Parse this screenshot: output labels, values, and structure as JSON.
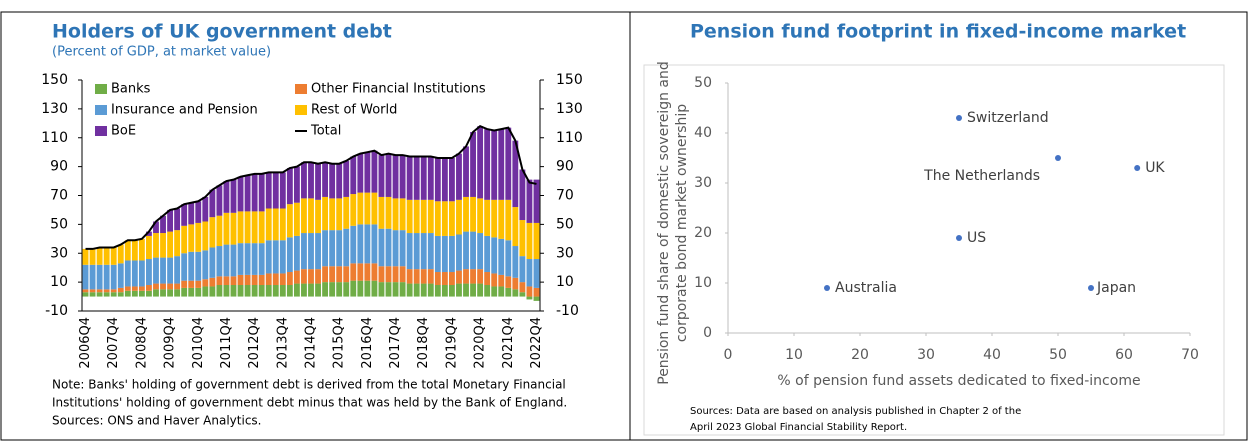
{
  "chart_data": [
    {
      "type": "bar",
      "stacked": true,
      "title": "Holders of UK government debt",
      "subtitle": "(Percent of GDP, at market value)",
      "categories": [
        "2006Q4",
        null,
        null,
        null,
        "2007Q4",
        null,
        null,
        null,
        "2008Q4",
        null,
        null,
        null,
        "2009Q4",
        null,
        null,
        null,
        "2010Q4",
        null,
        null,
        null,
        "2011Q4",
        null,
        null,
        null,
        "2012Q4",
        null,
        null,
        null,
        "2013Q4",
        null,
        null,
        null,
        "2014Q4",
        null,
        null,
        null,
        "2015Q4",
        null,
        null,
        null,
        "2016Q4",
        null,
        null,
        null,
        "2017Q4",
        null,
        null,
        null,
        "2018Q4",
        null,
        null,
        null,
        "2019Q4",
        null,
        null,
        null,
        "2020Q4",
        null,
        null,
        null,
        "2021Q4",
        null,
        null,
        null,
        "2022Q4"
      ],
      "series": [
        {
          "name": "Banks",
          "color": "#70ad47",
          "values": [
            3,
            3,
            3,
            3,
            3,
            3,
            4,
            4,
            4,
            4,
            5,
            5,
            5,
            5,
            6,
            6,
            6,
            7,
            7,
            8,
            8,
            8,
            8,
            8,
            8,
            8,
            8,
            8,
            8,
            8,
            9,
            9,
            9,
            9,
            10,
            10,
            10,
            10,
            11,
            11,
            11,
            11,
            10,
            10,
            10,
            10,
            9,
            9,
            9,
            9,
            8,
            8,
            8,
            9,
            9,
            9,
            9,
            8,
            7,
            7,
            6,
            5,
            3,
            -2,
            -3
          ]
        },
        {
          "name": "Other Financial Institutions",
          "color": "#ed7d31",
          "values": [
            2,
            2,
            2,
            2,
            2,
            3,
            3,
            3,
            3,
            4,
            4,
            4,
            4,
            4,
            5,
            5,
            5,
            5,
            6,
            6,
            6,
            6,
            7,
            7,
            7,
            7,
            8,
            8,
            8,
            9,
            9,
            10,
            10,
            10,
            11,
            11,
            11,
            11,
            12,
            12,
            12,
            12,
            11,
            11,
            11,
            11,
            10,
            10,
            10,
            10,
            9,
            9,
            9,
            9,
            10,
            10,
            10,
            9,
            9,
            8,
            8,
            8,
            7,
            7,
            6
          ]
        },
        {
          "name": "Insurance and Pension",
          "color": "#5b9bd5",
          "values": [
            17,
            17,
            17,
            17,
            17,
            17,
            18,
            18,
            18,
            18,
            18,
            18,
            18,
            19,
            19,
            20,
            20,
            20,
            21,
            21,
            22,
            22,
            22,
            22,
            22,
            22,
            23,
            23,
            23,
            24,
            24,
            25,
            25,
            25,
            25,
            25,
            25,
            26,
            26,
            27,
            27,
            27,
            26,
            26,
            25,
            25,
            25,
            25,
            25,
            25,
            25,
            25,
            25,
            25,
            26,
            26,
            25,
            25,
            25,
            25,
            25,
            22,
            18,
            19,
            20
          ]
        },
        {
          "name": "Rest of World",
          "color": "#ffc000",
          "values": [
            11,
            11,
            12,
            12,
            12,
            13,
            14,
            14,
            15,
            16,
            17,
            17,
            18,
            18,
            19,
            19,
            20,
            20,
            21,
            21,
            22,
            22,
            22,
            22,
            22,
            22,
            22,
            22,
            22,
            23,
            23,
            24,
            24,
            23,
            23,
            22,
            22,
            22,
            22,
            22,
            22,
            22,
            22,
            22,
            22,
            22,
            23,
            23,
            23,
            23,
            24,
            24,
            24,
            24,
            24,
            24,
            24,
            25,
            26,
            27,
            28,
            27,
            25,
            25,
            25
          ]
        },
        {
          "name": "BoE",
          "color": "#7030a0",
          "values": [
            0,
            0,
            0,
            0,
            0,
            0,
            0,
            0,
            0,
            3,
            8,
            12,
            15,
            15,
            15,
            15,
            15,
            17,
            19,
            21,
            22,
            23,
            24,
            25,
            26,
            26,
            25,
            25,
            25,
            25,
            25,
            25,
            25,
            25,
            24,
            24,
            24,
            25,
            26,
            27,
            28,
            29,
            29,
            30,
            30,
            30,
            30,
            30,
            30,
            30,
            30,
            30,
            30,
            32,
            35,
            45,
            50,
            49,
            48,
            49,
            50,
            46,
            35,
            30,
            30
          ]
        },
        {
          "name": "Total",
          "color": "#000000",
          "style": "line",
          "values": [
            33,
            33,
            34,
            34,
            34,
            36,
            39,
            39,
            40,
            45,
            52,
            56,
            60,
            61,
            64,
            65,
            66,
            69,
            74,
            77,
            80,
            81,
            83,
            84,
            85,
            85,
            86,
            86,
            86,
            89,
            90,
            93,
            93,
            92,
            93,
            92,
            92,
            94,
            97,
            99,
            100,
            101,
            98,
            99,
            98,
            98,
            97,
            97,
            97,
            97,
            96,
            96,
            96,
            99,
            104,
            114,
            118,
            116,
            115,
            116,
            117,
            108,
            88,
            79,
            78
          ]
        }
      ],
      "ylim": [
        -10,
        150
      ],
      "yticks": [
        -10,
        10,
        30,
        50,
        70,
        90,
        110,
        130,
        150
      ],
      "y2lim": [
        -10,
        150
      ],
      "y2ticks": [
        -10,
        10,
        30,
        50,
        70,
        90,
        110,
        130,
        150
      ],
      "notes": [
        "Note: Banks' holding of government debt is derived from the total Monetary Financial",
        "Institutions' holding of government debt minus that was held by the Bank of England.",
        "Sources: ONS and Haver Analytics."
      ]
    },
    {
      "type": "scatter",
      "title": "Pension fund footprint in fixed-income market",
      "xlabel": "% of pension fund assets dedicated to fixed-income",
      "ylabel": [
        "Pension fund share of domestic sovereign and",
        "corporate bond market ownership"
      ],
      "color": "#4472c4",
      "labels": [
        "Australia",
        "US",
        "Switzerland",
        "The Netherlands",
        "Japan",
        "UK"
      ],
      "x": [
        15,
        35,
        35,
        50,
        55,
        62
      ],
      "y": [
        9,
        19,
        43,
        35,
        9,
        33
      ],
      "xlim": [
        0,
        70
      ],
      "xticks": [
        0,
        10,
        20,
        30,
        40,
        50,
        60,
        70
      ],
      "ylim": [
        0,
        50
      ],
      "yticks": [
        0,
        10,
        20,
        30,
        40,
        50
      ],
      "notes": [
        "Sources: Data are based on analysis published in Chapter 2 of the",
        "April 2023 Global Financial Stability Report."
      ]
    }
  ]
}
